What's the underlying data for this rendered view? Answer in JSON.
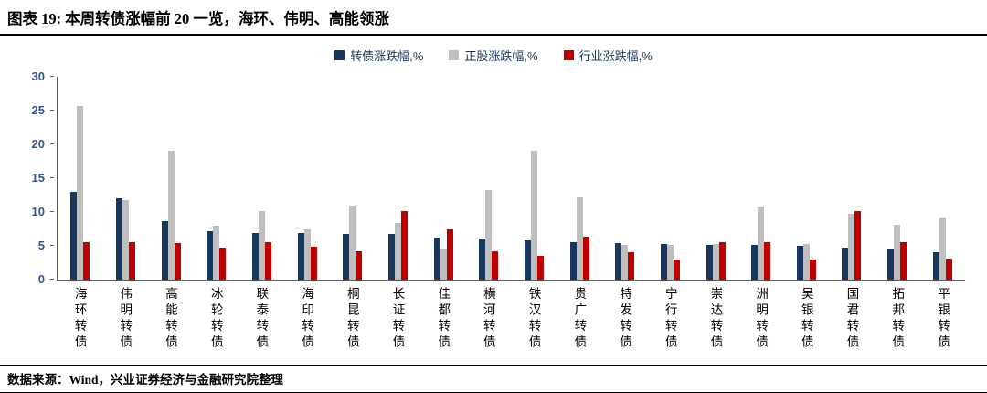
{
  "header": {
    "label": "图表 19:",
    "title": "本周转债涨幅前 20 一览，海环、伟明、高能领涨"
  },
  "footer": {
    "source": "数据来源：Wind，兴业证券经济与金融研究院整理"
  },
  "chart_data": {
    "type": "bar",
    "title": "本周转债涨幅前 20 一览",
    "xlabel": "",
    "ylabel": "",
    "ylim": [
      0,
      30
    ],
    "yticks": [
      0,
      5,
      10,
      15,
      20,
      25,
      30
    ],
    "grid": false,
    "legend_position": "top",
    "categories": [
      "海环转债",
      "伟明转债",
      "高能转债",
      "冰轮转债",
      "联泰转债",
      "海印转债",
      "桐昆转债",
      "长证转债",
      "佳都转债",
      "横河转债",
      "铁汉转债",
      "贵广转债",
      "特发转债",
      "宁行转债",
      "崇达转债",
      "洲明转债",
      "吴银转债",
      "国君转债",
      "拓邦转债",
      "平银转债"
    ],
    "series": [
      {
        "name": "转债涨跌幅,%",
        "color": "#17375E",
        "values": [
          13.0,
          12.0,
          8.6,
          7.2,
          6.9,
          6.9,
          6.8,
          6.8,
          6.2,
          6.1,
          5.8,
          5.5,
          5.4,
          5.3,
          5.2,
          5.2,
          5.0,
          4.7,
          4.6,
          4.1
        ]
      },
      {
        "name": "正股涨跌幅,%",
        "color": "#BFBFBF",
        "values": [
          25.7,
          11.8,
          19.0,
          8.0,
          10.2,
          7.5,
          10.9,
          8.4,
          4.6,
          13.2,
          19.1,
          12.2,
          5.1,
          5.2,
          5.3,
          10.8,
          5.3,
          9.8,
          8.1,
          9.2
        ]
      },
      {
        "name": "行业涨跌幅,%",
        "color": "#C00000",
        "values": [
          5.5,
          5.5,
          5.4,
          4.8,
          5.5,
          4.9,
          4.2,
          10.1,
          7.5,
          4.2,
          3.5,
          6.4,
          4.1,
          3.0,
          5.6,
          5.6,
          3.0,
          10.2,
          5.6,
          3.1
        ]
      }
    ]
  }
}
